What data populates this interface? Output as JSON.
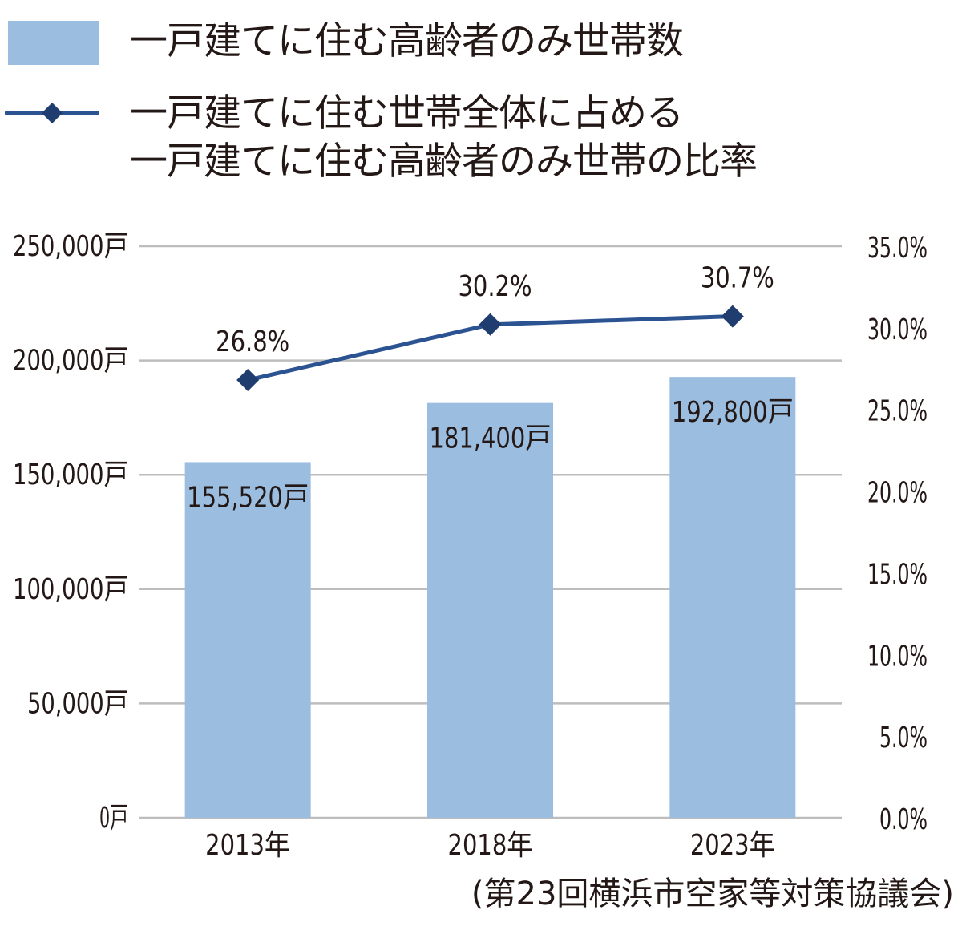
{
  "legend": {
    "bar_label": "一戸建てに住む高齢者のみ世帯数",
    "line_label_line1": "一戸建てに住む世帯全体に占める",
    "line_label_line2": "一戸建てに住む高齢者のみ世帯の比率"
  },
  "colors": {
    "bar": "#9bbde0",
    "line": "#2b5291",
    "marker": "#1f3d6e",
    "grid": "#bdbdbd",
    "text": "#231815"
  },
  "source": "(第23回横浜市空家等対策協議会)",
  "chart_data": {
    "type": "bar",
    "title": "",
    "categories": [
      "2013年",
      "2018年",
      "2023年"
    ],
    "series": [
      {
        "name": "一戸建てに住む高齢者のみ世帯数",
        "type": "bar",
        "axis": "left",
        "values": [
          155520,
          181400,
          192800
        ],
        "labels": [
          "155,520戸",
          "181,400戸",
          "192,800戸"
        ]
      },
      {
        "name": "一戸建てに住む世帯全体に占める一戸建てに住む高齢者のみ世帯の比率",
        "type": "line",
        "axis": "right",
        "values": [
          26.8,
          30.2,
          30.7
        ],
        "labels": [
          "26.8%",
          "30.2%",
          "30.7%"
        ]
      }
    ],
    "left_axis": {
      "ylim": [
        0,
        250000
      ],
      "ticks": [
        "0戸",
        "50,000戸",
        "100,000戸",
        "150,000戸",
        "200,000戸",
        "250,000戸"
      ]
    },
    "right_axis": {
      "ylim": [
        0,
        35
      ],
      "ticks": [
        "0.0%",
        "5.0%",
        "10.0%",
        "15.0%",
        "20.0%",
        "25.0%",
        "30.0%",
        "35.0%"
      ]
    },
    "xlabel": "",
    "ylabel": "",
    "grid": true,
    "legend_position": "top-left",
    "source_note": "(第23回横浜市空家等対策協議会)"
  }
}
